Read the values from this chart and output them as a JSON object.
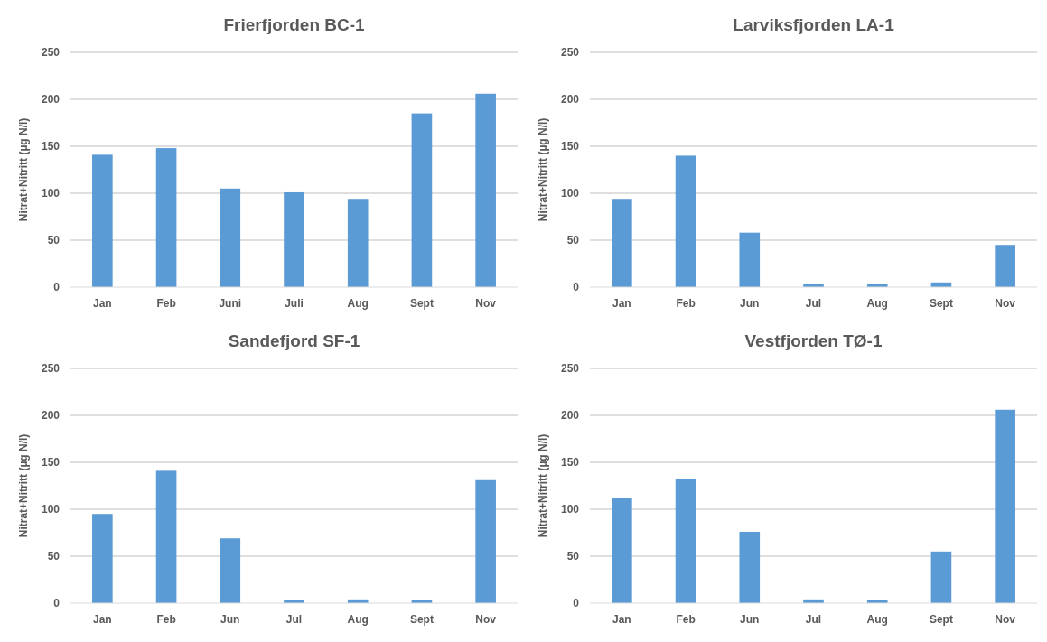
{
  "chart_data": [
    {
      "type": "bar",
      "title": "Frierfjorden BC-1",
      "ylabel": "Nitrat+Nitritt (µg N/l)",
      "categories": [
        "Jan",
        "Feb",
        "Juni",
        "Juli",
        "Aug",
        "Sept",
        "Nov"
      ],
      "values": [
        141,
        148,
        105,
        101,
        94,
        185,
        206
      ],
      "color": "#5b9bd5",
      "ylim": [
        0,
        250
      ],
      "yticks": [
        0,
        50,
        100,
        150,
        200,
        250
      ],
      "grid": "y"
    },
    {
      "type": "bar",
      "title": "Larviksfjorden LA-1",
      "ylabel": "Nitrat+Nitritt (µg N/l)",
      "categories": [
        "Jan",
        "Feb",
        "Jun",
        "Jul",
        "Aug",
        "Sept",
        "Nov"
      ],
      "values": [
        94,
        140,
        58,
        3,
        3,
        5,
        45
      ],
      "color": "#5b9bd5",
      "ylim": [
        0,
        250
      ],
      "yticks": [
        0,
        50,
        100,
        150,
        200,
        250
      ],
      "grid": "y"
    },
    {
      "type": "bar",
      "title": "Sandefjord SF-1",
      "ylabel": "Nitrat+Nitritt (µg N/l)",
      "categories": [
        "Jan",
        "Feb",
        "Jun",
        "Jul",
        "Aug",
        "Sept",
        "Nov"
      ],
      "values": [
        95,
        141,
        69,
        3,
        4,
        3,
        131
      ],
      "color": "#5b9bd5",
      "ylim": [
        0,
        250
      ],
      "yticks": [
        0,
        50,
        100,
        150,
        200,
        250
      ],
      "grid": "y"
    },
    {
      "type": "bar",
      "title": "Vestfjorden TØ-1",
      "ylabel": "Nitrat+Nitritt (µg N/l)",
      "categories": [
        "Jan",
        "Feb",
        "Jun",
        "Jul",
        "Aug",
        "Sept",
        "Nov"
      ],
      "values": [
        112,
        132,
        76,
        4,
        3,
        55,
        206
      ],
      "color": "#5b9bd5",
      "ylim": [
        0,
        250
      ],
      "yticks": [
        0,
        50,
        100,
        150,
        200,
        250
      ],
      "grid": "y"
    }
  ]
}
